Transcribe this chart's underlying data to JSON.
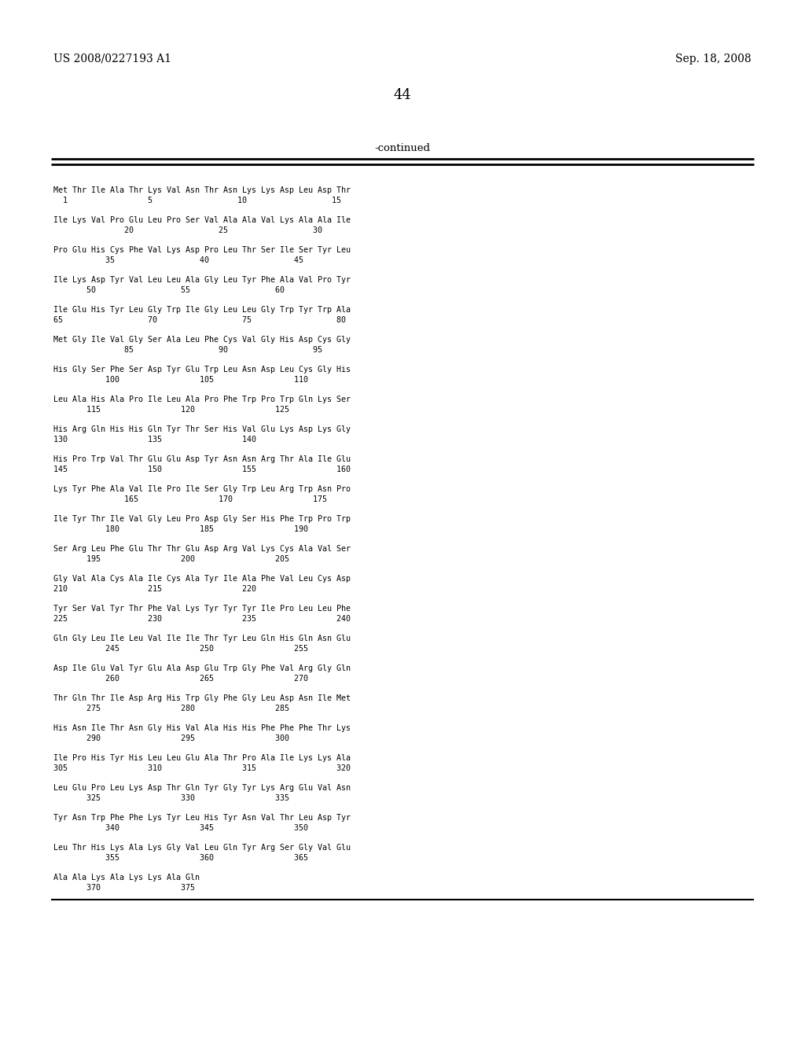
{
  "header_left": "US 2008/0227193 A1",
  "header_right": "Sep. 18, 2008",
  "page_number": "44",
  "continued_label": "-continued",
  "background_color": "#ffffff",
  "text_color": "#000000",
  "seq_lines": [
    [
      "Met Thr Ile Ala Thr Lys Val Asn Thr Asn Lys Lys Asp Leu Asp Thr",
      "  1                 5                  10                  15"
    ],
    [
      "Ile Lys Val Pro Glu Leu Pro Ser Val Ala Ala Val Lys Ala Ala Ile",
      "               20                  25                  30"
    ],
    [
      "Pro Glu His Cys Phe Val Lys Asp Pro Leu Thr Ser Ile Ser Tyr Leu",
      "           35                  40                  45"
    ],
    [
      "Ile Lys Asp Tyr Val Leu Leu Ala Gly Leu Tyr Phe Ala Val Pro Tyr",
      "       50                  55                  60"
    ],
    [
      "Ile Glu His Tyr Leu Gly Trp Ile Gly Leu Leu Gly Trp Tyr Trp Ala",
      "65                  70                  75                  80"
    ],
    [
      "Met Gly Ile Val Gly Ser Ala Leu Phe Cys Val Gly His Asp Cys Gly",
      "               85                  90                  95"
    ],
    [
      "His Gly Ser Phe Ser Asp Tyr Glu Trp Leu Asn Asp Leu Cys Gly His",
      "           100                 105                 110"
    ],
    [
      "Leu Ala His Ala Pro Ile Leu Ala Pro Phe Trp Pro Trp Gln Lys Ser",
      "       115                 120                 125"
    ],
    [
      "His Arg Gln His His Gln Tyr Thr Ser His Val Glu Lys Asp Lys Gly",
      "130                 135                 140"
    ],
    [
      "His Pro Trp Val Thr Glu Glu Asp Tyr Asn Asn Arg Thr Ala Ile Glu",
      "145                 150                 155                 160"
    ],
    [
      "Lys Tyr Phe Ala Val Ile Pro Ile Ser Gly Trp Leu Arg Trp Asn Pro",
      "               165                 170                 175"
    ],
    [
      "Ile Tyr Thr Ile Val Gly Leu Pro Asp Gly Ser His Phe Trp Pro Trp",
      "           180                 185                 190"
    ],
    [
      "Ser Arg Leu Phe Glu Thr Thr Glu Asp Arg Val Lys Cys Ala Val Ser",
      "       195                 200                 205"
    ],
    [
      "Gly Val Ala Cys Ala Ile Cys Ala Tyr Ile Ala Phe Val Leu Cys Asp",
      "210                 215                 220"
    ],
    [
      "Tyr Ser Val Tyr Thr Phe Val Lys Tyr Tyr Tyr Ile Pro Leu Leu Phe",
      "225                 230                 235                 240"
    ],
    [
      "Gln Gly Leu Ile Leu Val Ile Ile Thr Tyr Leu Gln His Gln Asn Glu",
      "           245                 250                 255"
    ],
    [
      "Asp Ile Glu Val Tyr Glu Ala Asp Glu Trp Gly Phe Val Arg Gly Gln",
      "           260                 265                 270"
    ],
    [
      "Thr Gln Thr Ile Asp Arg His Trp Gly Phe Gly Leu Asp Asn Ile Met",
      "       275                 280                 285"
    ],
    [
      "His Asn Ile Thr Asn Gly His Val Ala His His Phe Phe Phe Thr Lys",
      "       290                 295                 300"
    ],
    [
      "Ile Pro His Tyr His Leu Leu Glu Ala Thr Pro Ala Ile Lys Lys Ala",
      "305                 310                 315                 320"
    ],
    [
      "Leu Glu Pro Leu Lys Asp Thr Gln Tyr Gly Tyr Lys Arg Glu Val Asn",
      "       325                 330                 335"
    ],
    [
      "Tyr Asn Trp Phe Phe Lys Tyr Leu His Tyr Asn Val Thr Leu Asp Tyr",
      "           340                 345                 350"
    ],
    [
      "Leu Thr His Lys Ala Lys Gly Val Leu Gln Tyr Arg Ser Gly Val Glu",
      "           355                 360                 365"
    ],
    [
      "Ala Ala Lys Ala Lys Lys Ala Gln",
      "       370                 375"
    ]
  ],
  "figwidth": 10.24,
  "figheight": 13.2,
  "dpi": 100
}
